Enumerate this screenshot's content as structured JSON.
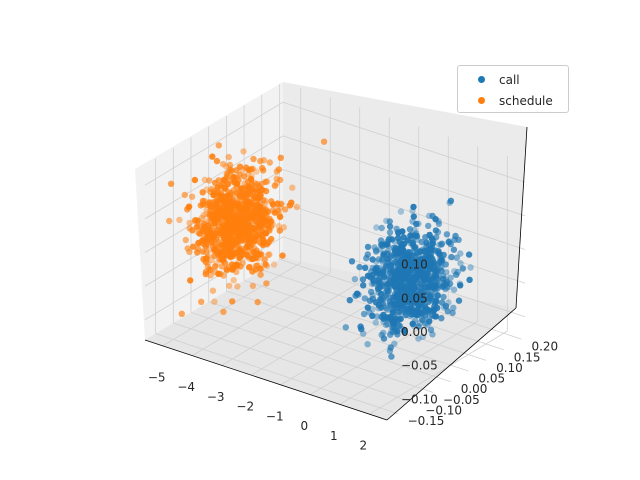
{
  "chart_data": {
    "type": "scatter",
    "projection": "3d",
    "title": "",
    "xlabel": "",
    "ylabel": "",
    "zlabel": "",
    "xlim": [
      -5.6,
      2.6
    ],
    "ylim": [
      -0.18,
      0.21
    ],
    "zlim": [
      -0.13,
      0.13
    ],
    "x_ticks": [
      "−5",
      "−4",
      "−3",
      "−2",
      "−1",
      "0",
      "1",
      "2"
    ],
    "y_ticks": [
      "−0.15",
      "−0.10",
      "−0.05",
      "0.00",
      "0.05",
      "0.10",
      "0.15",
      "0.20"
    ],
    "z_ticks": [
      "−0.10",
      "−0.05",
      "0.00",
      "0.05",
      "0.10"
    ],
    "grid": true,
    "legend_position": "top-right",
    "series": [
      {
        "name": "call",
        "color": "#1f77b4",
        "center": {
          "x": 1.2,
          "y": 0.0,
          "z": 0.0
        },
        "spread": {
          "x": 0.45,
          "y": 0.045,
          "z": 0.035
        }
      },
      {
        "name": "schedule",
        "color": "#ff7f0e",
        "center": {
          "x": -4.7,
          "y": 0.0,
          "z": 0.0
        },
        "spread": {
          "x": 0.45,
          "y": 0.045,
          "z": 0.035
        }
      }
    ]
  }
}
